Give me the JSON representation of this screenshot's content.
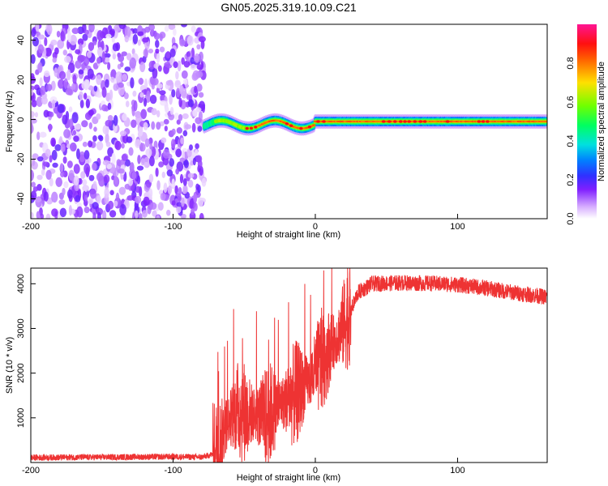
{
  "chart_data": [
    {
      "type": "heatmap",
      "title": "GN05.2025.319.10.09.C21",
      "xlabel": "Height of straight line (km)",
      "ylabel": "Frequency (Hz)",
      "xlim": [
        -200,
        163
      ],
      "ylim": [
        -50,
        48
      ],
      "xticks": [
        -200,
        -100,
        0,
        100
      ],
      "yticks": [
        -40,
        -20,
        0,
        20,
        40
      ],
      "colorbar": {
        "label": "Normalized spectral amplitude",
        "range": [
          0.0,
          1.0
        ],
        "ticks": [
          0.0,
          0.2,
          0.4,
          0.6,
          0.8
        ]
      },
      "regions": [
        {
          "name": "noise",
          "x_range": [
            -200,
            -78
          ],
          "freq_range": [
            -50,
            48
          ],
          "amplitude_range": [
            0.0,
            0.15
          ]
        },
        {
          "name": "carrier",
          "x_range": [
            -78,
            163
          ],
          "freq_center": -1,
          "amplitude_range": [
            0.2,
            1.0
          ]
        }
      ]
    },
    {
      "type": "line",
      "xlabel": "Height of straight line (km)",
      "ylabel": "SNR (10 * v/v)",
      "xlim": [
        -200,
        163
      ],
      "ylim": [
        0,
        4350
      ],
      "xticks": [
        -200,
        -100,
        0,
        100
      ],
      "yticks": [
        1000,
        2000,
        3000,
        4000
      ],
      "color": "#ee3333",
      "series": [
        {
          "name": "SNR",
          "x": [
            -200,
            -150,
            -100,
            -80,
            -70,
            -62,
            -55,
            -45,
            -35,
            -25,
            -15,
            -5,
            5,
            15,
            25,
            30,
            40,
            60,
            80,
            100,
            120,
            140,
            163
          ],
          "values": [
            110,
            120,
            130,
            120,
            200,
            900,
            1200,
            1100,
            1000,
            1300,
            1500,
            1800,
            2300,
            2800,
            3400,
            3800,
            4000,
            4020,
            4010,
            3980,
            3900,
            3800,
            3700
          ]
        }
      ]
    }
  ]
}
